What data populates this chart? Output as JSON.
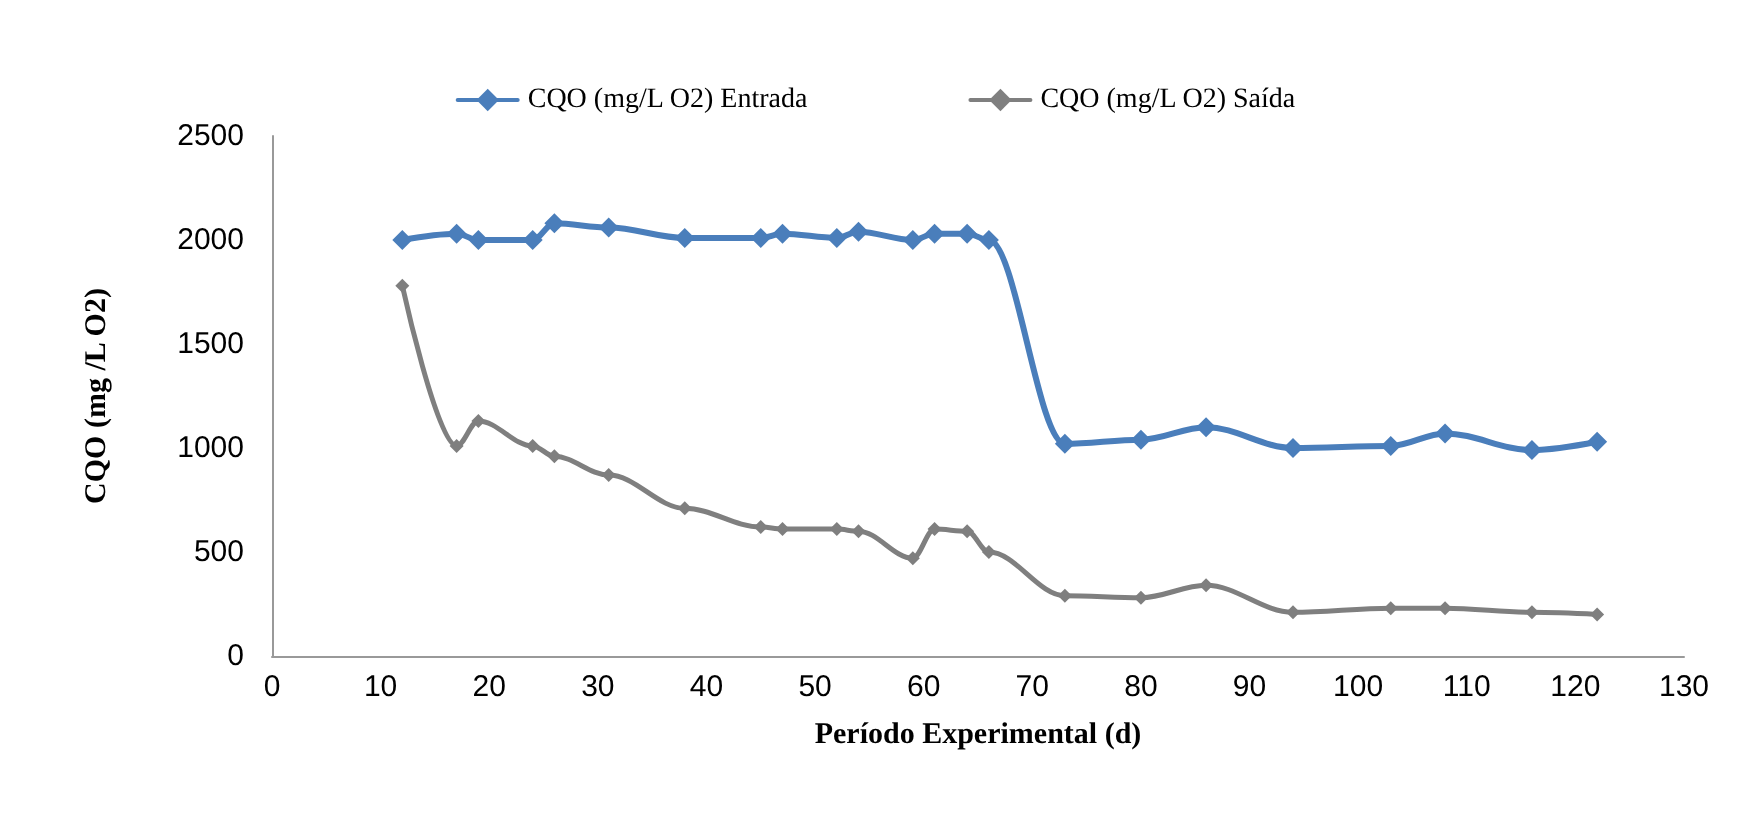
{
  "chart_data": {
    "type": "line",
    "xlabel": "Período Experimental (d)",
    "ylabel": "CQO (mg /L O2)",
    "x": [
      12,
      17,
      19,
      24,
      26,
      31,
      38,
      45,
      47,
      52,
      54,
      59,
      61,
      64,
      66,
      73,
      80,
      86,
      94,
      103,
      108,
      116,
      122
    ],
    "series": [
      {
        "name": "CQO (mg/L O2) Entrada",
        "color": "#4a7ebb",
        "values": [
          2000,
          2030,
          2000,
          2000,
          2080,
          2060,
          2010,
          2010,
          2030,
          2010,
          2040,
          2000,
          2030,
          2030,
          2000,
          1020,
          1040,
          1100,
          1000,
          1010,
          1070,
          990,
          1030
        ]
      },
      {
        "name": "CQO (mg/L O2) Saída",
        "color": "#7f7f7f",
        "values": [
          1780,
          1010,
          1130,
          1010,
          960,
          870,
          710,
          620,
          610,
          610,
          600,
          470,
          610,
          600,
          500,
          290,
          280,
          340,
          210,
          230,
          230,
          210,
          200
        ]
      }
    ],
    "xlim": [
      0,
      130
    ],
    "xticks": [
      0,
      10,
      20,
      30,
      40,
      50,
      60,
      70,
      80,
      90,
      100,
      110,
      120,
      130
    ],
    "ylim": [
      0,
      2500
    ],
    "yticks": [
      0,
      500,
      1000,
      1500,
      2000,
      2500
    ],
    "grid": false,
    "legend": "top",
    "marker": "diamond",
    "line_style": "solid"
  }
}
